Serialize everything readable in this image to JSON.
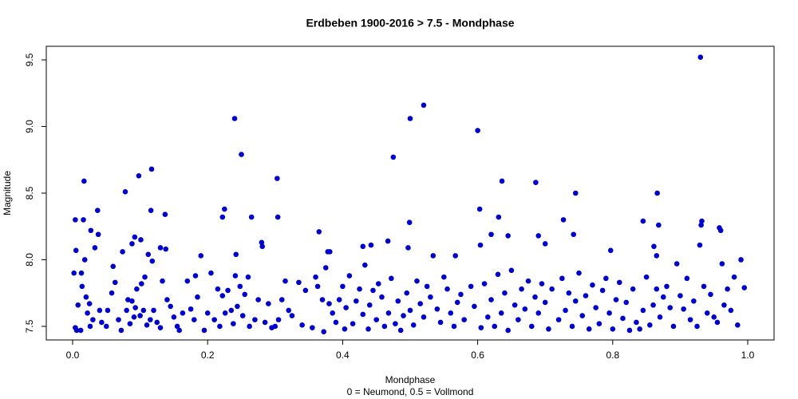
{
  "chart_data": {
    "type": "scatter",
    "title": "Erdbeben 1900-2016 > 7.5 - Mondphase",
    "x_label": "Mondphase",
    "x_sublabel": "0 = Neumond, 0.5 = Vollmond",
    "y_label": "Magnitude",
    "color": "#0000cd",
    "xlim": [
      -0.039,
      1.039
    ],
    "ylim": [
      7.398,
      9.602
    ],
    "xticks": [
      {
        "value": 0,
        "label": "0.0"
      },
      0.2,
      0.4,
      0.6,
      0.8,
      {
        "value": 1,
        "label": "1.0"
      }
    ],
    "yticks": [
      7.5,
      {
        "value": 8,
        "label": "8.0"
      },
      8.5,
      {
        "value": 9,
        "label": "9.0"
      },
      9.5
    ],
    "x": [
      0.93,
      0.52,
      0.24,
      0.5,
      0.6,
      0.25,
      0.475,
      0.117,
      0.098,
      0.303,
      0.017,
      0.686,
      0.636,
      0.078,
      0.745,
      0.866,
      0.225,
      0.116,
      0.037,
      0.603,
      0.137,
      0.004,
      0.016,
      0.304,
      0.222,
      0.265,
      0.631,
      0.727,
      0.845,
      0.932,
      0.931,
      0.868,
      0.499,
      0.958,
      0.96,
      0.027,
      0.038,
      0.62,
      0.645,
      0.742,
      0.69,
      0.365,
      0.092,
      0.088,
      0.101,
      0.28,
      0.281,
      0.604,
      0.497,
      0.467,
      0.442,
      0.43,
      0.13,
      0.138,
      0.005,
      0.033,
      0.074,
      0.242,
      0.378,
      0.381,
      0.534,
      0.567,
      0.7,
      0.929,
      0.861,
      0.865,
      0.797,
      0.002,
      0.004,
      0.006,
      0.008,
      0.012,
      0.013,
      0.014,
      0.018,
      0.02,
      0.022,
      0.025,
      0.026,
      0.03,
      0.04,
      0.043,
      0.05,
      0.052,
      0.058,
      0.06,
      0.063,
      0.068,
      0.072,
      0.08,
      0.082,
      0.085,
      0.088,
      0.091,
      0.093,
      0.095,
      0.1,
      0.102,
      0.105,
      0.107,
      0.11,
      0.112,
      0.115,
      0.118,
      0.12,
      0.125,
      0.13,
      0.133,
      0.14,
      0.145,
      0.15,
      0.155,
      0.158,
      0.163,
      0.17,
      0.175,
      0.18,
      0.182,
      0.185,
      0.19,
      0.195,
      0.2,
      0.205,
      0.21,
      0.215,
      0.218,
      0.222,
      0.226,
      0.23,
      0.235,
      0.238,
      0.241,
      0.244,
      0.248,
      0.252,
      0.255,
      0.26,
      0.262,
      0.27,
      0.275,
      0.285,
      0.29,
      0.295,
      0.3,
      0.305,
      0.31,
      0.315,
      0.32,
      0.325,
      0.335,
      0.34,
      0.345,
      0.355,
      0.36,
      0.363,
      0.37,
      0.372,
      0.375,
      0.38,
      0.385,
      0.39,
      0.395,
      0.4,
      0.403,
      0.405,
      0.41,
      0.415,
      0.42,
      0.425,
      0.43,
      0.433,
      0.438,
      0.44,
      0.445,
      0.45,
      0.453,
      0.458,
      0.462,
      0.468,
      0.472,
      0.478,
      0.482,
      0.486,
      0.49,
      0.495,
      0.5,
      0.505,
      0.51,
      0.515,
      0.52,
      0.525,
      0.53,
      0.54,
      0.545,
      0.55,
      0.555,
      0.56,
      0.565,
      0.57,
      0.575,
      0.58,
      0.59,
      0.595,
      0.605,
      0.61,
      0.615,
      0.62,
      0.625,
      0.63,
      0.635,
      0.64,
      0.645,
      0.65,
      0.655,
      0.66,
      0.665,
      0.67,
      0.675,
      0.68,
      0.685,
      0.69,
      0.695,
      0.7,
      0.705,
      0.71,
      0.72,
      0.725,
      0.73,
      0.735,
      0.74,
      0.745,
      0.75,
      0.755,
      0.76,
      0.765,
      0.77,
      0.775,
      0.78,
      0.785,
      0.79,
      0.795,
      0.8,
      0.805,
      0.81,
      0.815,
      0.82,
      0.825,
      0.83,
      0.835,
      0.84,
      0.845,
      0.85,
      0.855,
      0.86,
      0.865,
      0.87,
      0.875,
      0.88,
      0.885,
      0.89,
      0.895,
      0.9,
      0.905,
      0.91,
      0.915,
      0.92,
      0.925,
      0.935,
      0.94,
      0.945,
      0.95,
      0.955,
      0.962,
      0.965,
      0.97,
      0.975,
      0.98,
      0.985,
      0.99,
      0.995
    ],
    "values": [
      9.52,
      9.16,
      9.06,
      9.06,
      8.97,
      8.79,
      8.77,
      8.68,
      8.63,
      8.61,
      8.59,
      8.58,
      8.59,
      8.51,
      8.5,
      8.5,
      8.38,
      8.37,
      8.37,
      8.38,
      8.34,
      8.3,
      8.3,
      8.32,
      8.32,
      8.32,
      8.32,
      8.3,
      8.29,
      8.29,
      8.26,
      8.26,
      8.28,
      8.24,
      8.22,
      8.22,
      8.19,
      8.19,
      8.18,
      8.19,
      8.18,
      8.21,
      8.17,
      8.12,
      8.15,
      8.13,
      8.1,
      8.11,
      8.09,
      8.14,
      8.11,
      8.1,
      8.09,
      8.08,
      8.07,
      8.09,
      8.06,
      8.04,
      8.06,
      8.06,
      8.03,
      8.03,
      8.12,
      8.11,
      8.1,
      8.03,
      8.07,
      7.9,
      7.49,
      7.47,
      7.66,
      7.47,
      7.9,
      7.8,
      8.0,
      7.72,
      7.6,
      7.67,
      7.5,
      7.55,
      7.62,
      7.53,
      7.5,
      7.62,
      7.75,
      7.95,
      7.83,
      7.55,
      7.47,
      7.62,
      7.7,
      7.52,
      7.69,
      7.57,
      7.64,
      7.78,
      7.58,
      7.82,
      7.62,
      7.87,
      7.51,
      8.04,
      7.55,
      7.99,
      7.62,
      7.53,
      7.49,
      7.84,
      7.7,
      7.65,
      7.57,
      7.5,
      7.47,
      7.6,
      7.84,
      7.63,
      7.55,
      7.88,
      7.72,
      8.03,
      7.47,
      7.6,
      7.9,
      7.55,
      7.78,
      7.5,
      7.73,
      7.6,
      7.77,
      7.62,
      7.52,
      7.88,
      7.65,
      7.8,
      7.58,
      7.74,
      7.87,
      7.5,
      7.55,
      7.7,
      7.53,
      7.67,
      7.49,
      7.5,
      7.55,
      7.7,
      7.84,
      7.62,
      7.58,
      7.83,
      7.51,
      7.77,
      7.49,
      7.87,
      7.8,
      7.7,
      7.46,
      7.94,
      7.67,
      7.6,
      7.53,
      7.7,
      7.8,
      7.48,
      7.64,
      7.88,
      7.52,
      7.69,
      7.78,
      7.59,
      7.96,
      7.48,
      7.66,
      7.77,
      7.55,
      7.82,
      7.72,
      7.5,
      7.6,
      7.86,
      7.52,
      7.69,
      7.47,
      7.58,
      7.75,
      7.62,
      7.51,
      7.84,
      7.67,
      7.57,
      7.8,
      7.72,
      7.63,
      7.53,
      7.87,
      7.78,
      7.6,
      7.5,
      7.68,
      7.74,
      7.55,
      7.8,
      7.65,
      7.49,
      7.82,
      7.57,
      7.7,
      7.5,
      7.89,
      7.6,
      7.75,
      7.47,
      7.92,
      7.66,
      7.55,
      7.78,
      7.63,
      7.84,
      7.5,
      7.72,
      7.6,
      7.82,
      7.68,
      7.48,
      7.78,
      7.55,
      7.86,
      7.62,
      7.75,
      7.5,
      7.69,
      7.9,
      7.58,
      7.73,
      7.48,
      7.81,
      7.64,
      7.52,
      7.77,
      7.86,
      7.6,
      7.48,
      7.7,
      7.83,
      7.56,
      7.68,
      7.47,
      7.78,
      7.53,
      7.48,
      7.62,
      7.87,
      7.51,
      7.66,
      7.78,
      7.57,
      7.72,
      7.8,
      7.64,
      7.5,
      7.97,
      7.73,
      7.63,
      7.86,
      7.55,
      7.69,
      7.5,
      7.8,
      7.6,
      7.74,
      7.57,
      7.53,
      7.97,
      7.66,
      7.78,
      7.62,
      7.87,
      7.51,
      8.0,
      7.79
    ]
  }
}
